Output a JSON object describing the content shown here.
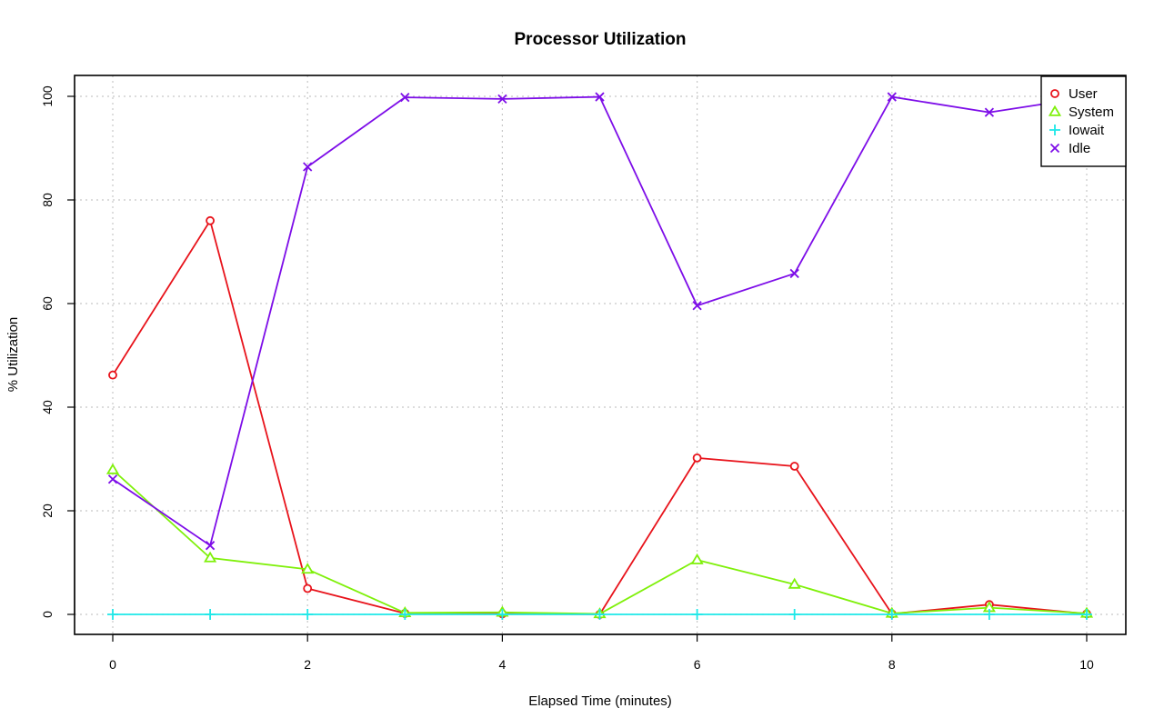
{
  "chart_data": {
    "type": "line",
    "title": "Processor Utilization",
    "xlabel": "Elapsed Time (minutes)",
    "ylabel": "% Utilization",
    "xlim": [
      0,
      10
    ],
    "ylim": [
      0,
      100
    ],
    "x_ticks": [
      0,
      2,
      4,
      6,
      8,
      10
    ],
    "y_ticks": [
      0,
      20,
      40,
      60,
      80,
      100
    ],
    "grid": true,
    "legend_position": "top-right",
    "x": [
      0,
      1,
      2,
      3,
      4,
      5,
      6,
      7,
      8,
      9,
      10
    ],
    "series": [
      {
        "name": "User",
        "color": "#e8131b",
        "marker": "circle",
        "values": [
          46.2,
          76,
          5,
          0.2,
          0.1,
          0,
          30.2,
          28.6,
          0.1,
          1.9,
          0.1
        ]
      },
      {
        "name": "System",
        "color": "#7ff00a",
        "marker": "triangle",
        "values": [
          27.9,
          10.9,
          8.7,
          0.3,
          0.4,
          0.1,
          10.5,
          5.8,
          0.2,
          1.3,
          0.2
        ]
      },
      {
        "name": "Iowait",
        "color": "#1ee8e8",
        "marker": "plus",
        "values": [
          0,
          0,
          0,
          0,
          0,
          0,
          0,
          0,
          0,
          0,
          0
        ]
      },
      {
        "name": "Idle",
        "color": "#7d0de8",
        "marker": "cross",
        "values": [
          26.1,
          13.3,
          86.4,
          99.8,
          99.5,
          99.9,
          59.6,
          65.8,
          99.9,
          96.9,
          99.8
        ]
      }
    ]
  }
}
